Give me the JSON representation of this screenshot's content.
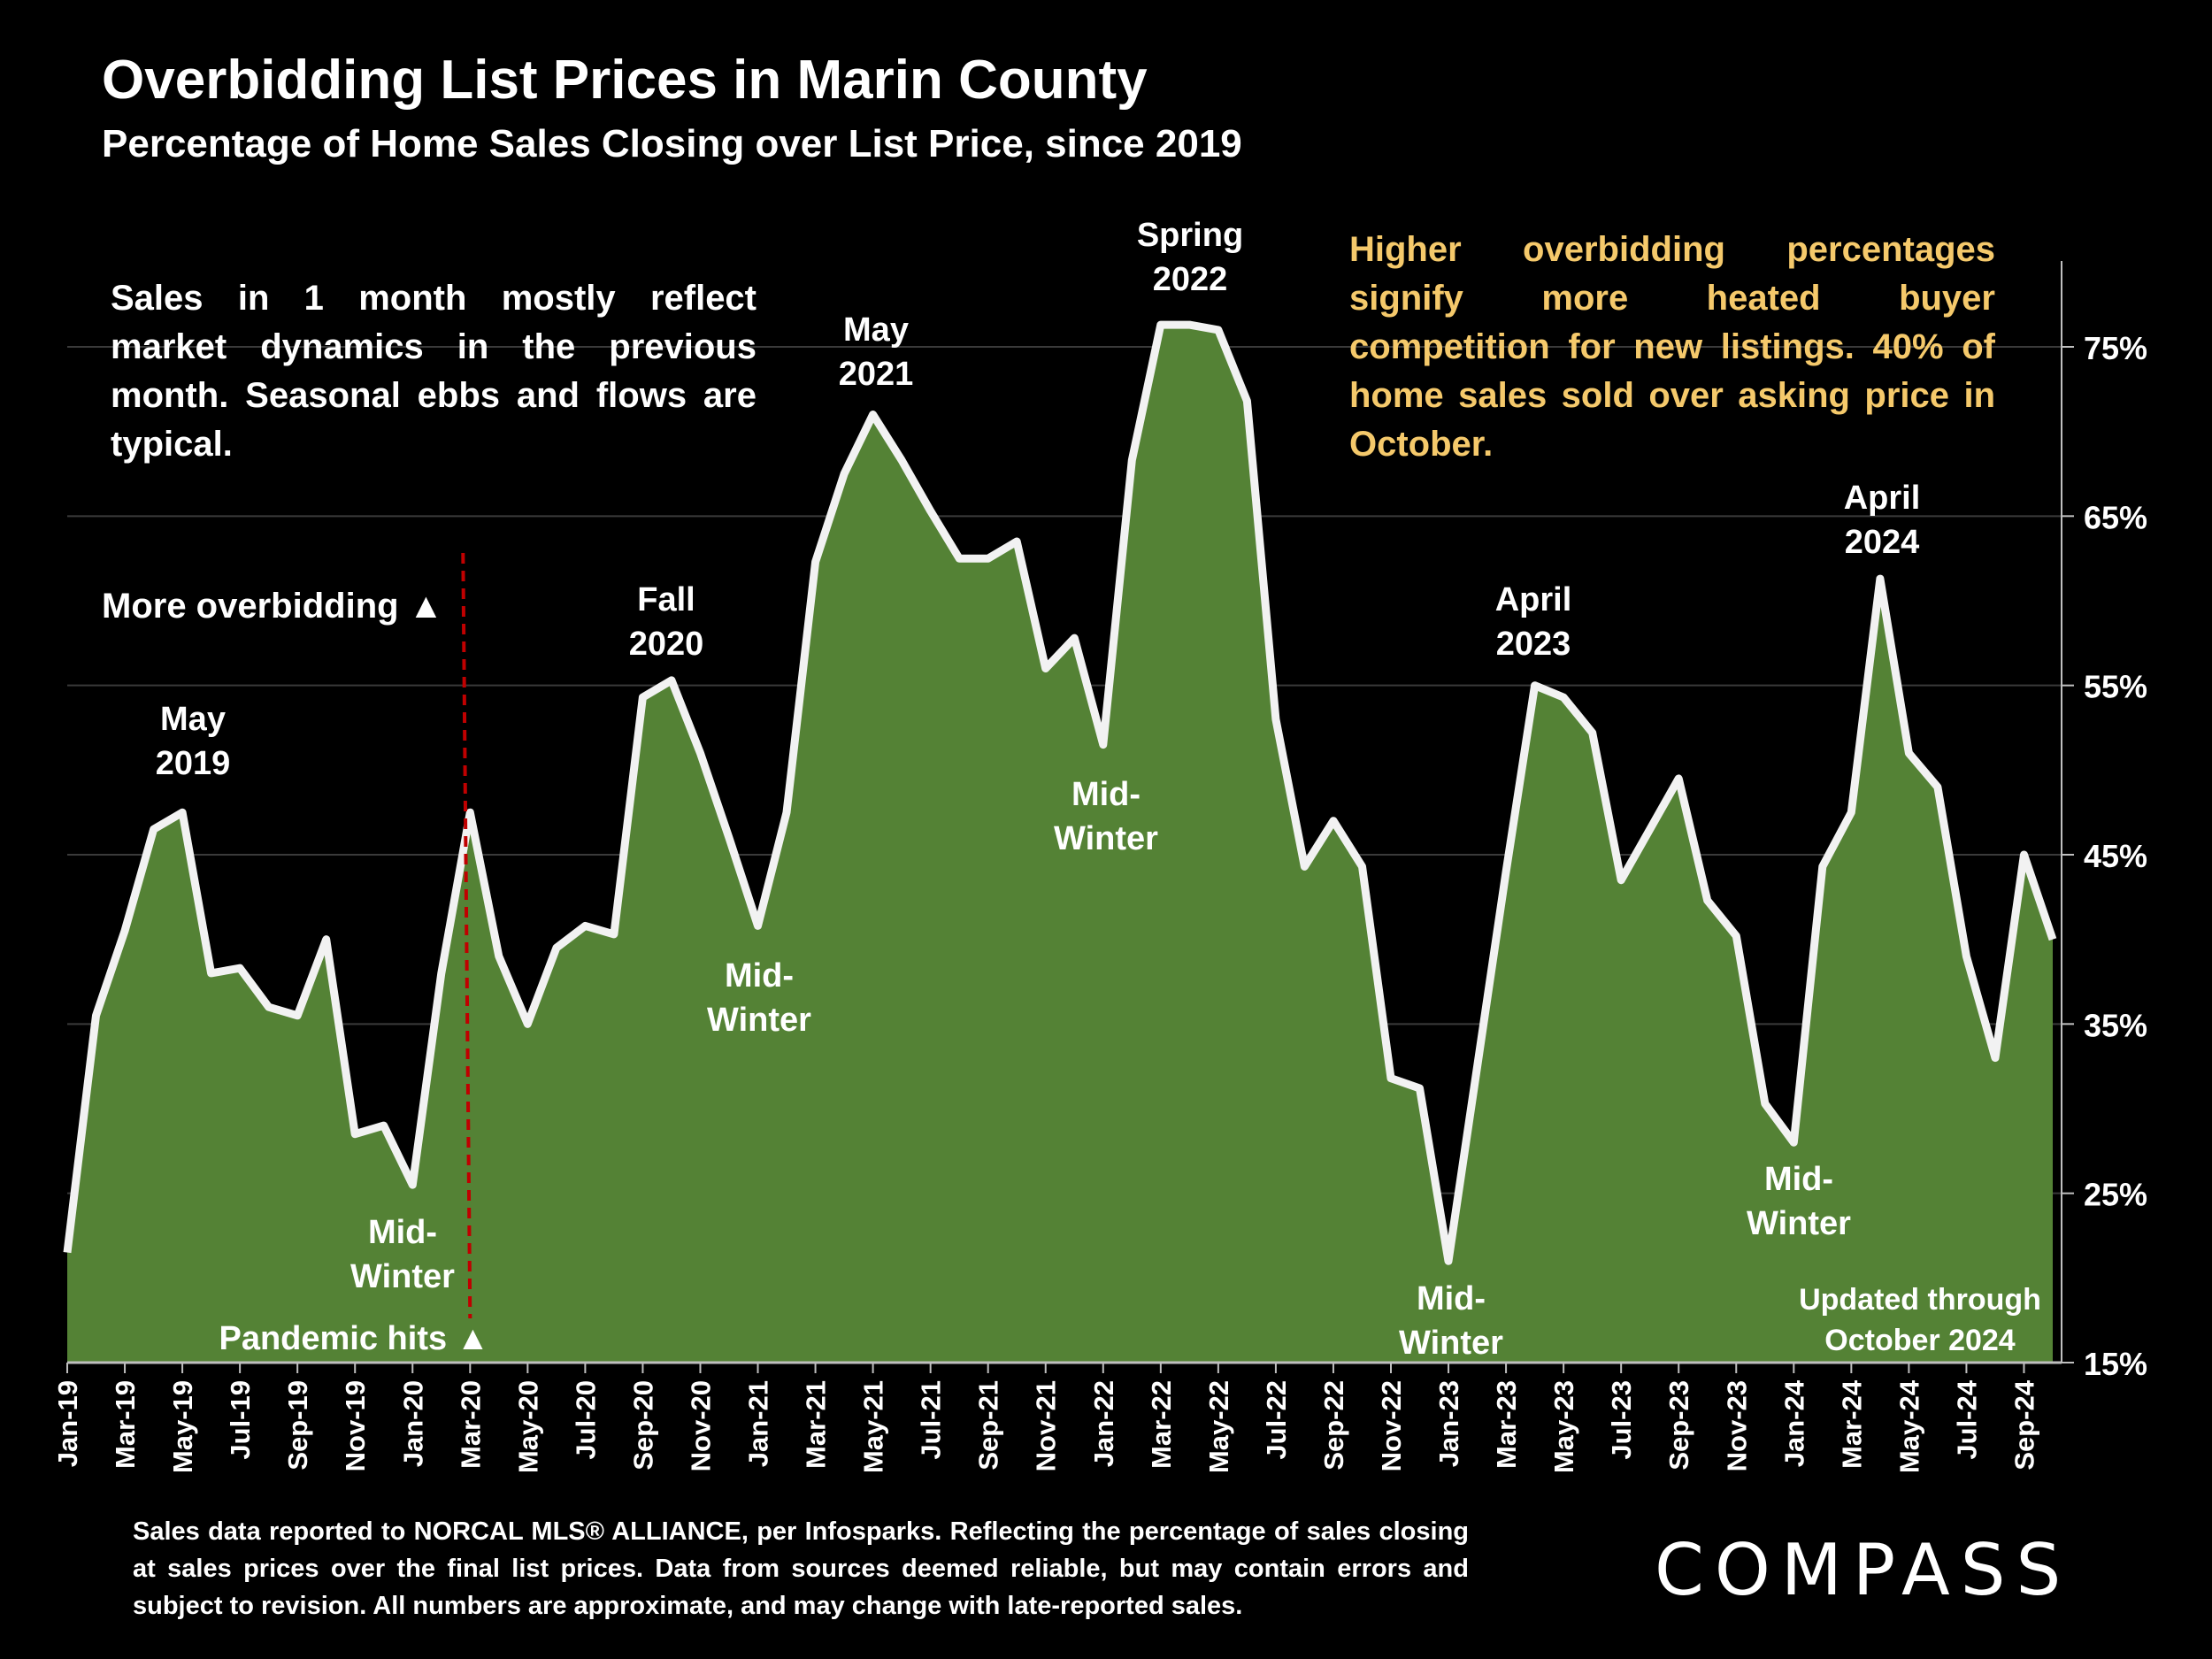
{
  "title": "Overbidding List Prices in Marin County",
  "subtitle": "Percentage of Home Sales Closing over List Price, since 2019",
  "note_left": "Sales in 1 month mostly reflect market dynamics in the previous month. Seasonal ebbs and flows are typical.",
  "note_right": "Higher overbidding percentages signify more heated buyer competition for new listings. 40% of home sales sold over asking price in October.",
  "footnote": "Sales data reported to NORCAL MLS® ALLIANCE, per Infosparks. Reflecting the percentage of sales closing at sales prices over the final list prices. Data from sources deemed reliable, but may contain errors and subject to revision. All numbers are approximate, and may change with late-reported sales.",
  "logo_text": "COMPASS",
  "colors": {
    "fill": "#548235",
    "line": "#f2f2f2",
    "grid": "#3a3a3a",
    "pandemic_line": "#c00000",
    "note_right": "#f5c96b"
  },
  "chart_data": {
    "type": "area",
    "ylim": [
      15,
      80
    ],
    "ytick_values": [
      15,
      25,
      35,
      45,
      55,
      65,
      75
    ],
    "ytick_labels": [
      "15%",
      "25%",
      "35%",
      "45%",
      "55%",
      "65%",
      "75%"
    ],
    "grid": true,
    "yaxis_position": "right",
    "x": [
      "Jan-19",
      "Feb-19",
      "Mar-19",
      "Apr-19",
      "May-19",
      "Jun-19",
      "Jul-19",
      "Aug-19",
      "Sep-19",
      "Oct-19",
      "Nov-19",
      "Dec-19",
      "Jan-20",
      "Feb-20",
      "Mar-20",
      "Apr-20",
      "May-20",
      "Jun-20",
      "Jul-20",
      "Aug-20",
      "Sep-20",
      "Oct-20",
      "Nov-20",
      "Dec-20",
      "Jan-21",
      "Feb-21",
      "Mar-21",
      "Apr-21",
      "May-21",
      "Jun-21",
      "Jul-21",
      "Aug-21",
      "Sep-21",
      "Oct-21",
      "Nov-21",
      "Dec-21",
      "Jan-22",
      "Feb-22",
      "Mar-22",
      "Apr-22",
      "May-22",
      "Jun-22",
      "Jul-22",
      "Aug-22",
      "Sep-22",
      "Oct-22",
      "Nov-22",
      "Dec-22",
      "Jan-23",
      "Feb-23",
      "Mar-23",
      "Apr-23",
      "May-23",
      "Jun-23",
      "Jul-23",
      "Aug-23",
      "Sep-23",
      "Oct-23",
      "Nov-23",
      "Dec-23",
      "Jan-24",
      "Feb-24",
      "Mar-24",
      "Apr-24",
      "May-24",
      "Jun-24",
      "Jul-24",
      "Aug-24",
      "Sep-24",
      "Oct-24"
    ],
    "xtick_labels": [
      "Jan-19",
      "Mar-19",
      "May-19",
      "Jul-19",
      "Sep-19",
      "Nov-19",
      "Jan-20",
      "Mar-20",
      "May-20",
      "Jul-20",
      "Sep-20",
      "Nov-20",
      "Jan-21",
      "Mar-21",
      "May-21",
      "Jul-21",
      "Sep-21",
      "Nov-21",
      "Jan-22",
      "Mar-22",
      "May-22",
      "Jul-22",
      "Sep-22",
      "Nov-22",
      "Jan-23",
      "Mar-23",
      "May-23",
      "Jul-23",
      "Sep-23",
      "Nov-23",
      "Jan-24",
      "Mar-24",
      "May-24",
      "Jul-24",
      "Sep-24"
    ],
    "series": [
      {
        "values": [
          21.5,
          35.5,
          40.5,
          46.5,
          47.5,
          38,
          38.3,
          36,
          35.5,
          40,
          28.5,
          29,
          25.5,
          38,
          47.5,
          39,
          35,
          39.5,
          40.8,
          40.3,
          54.3,
          55.3,
          51,
          46,
          40.8,
          47.5,
          62.3,
          67.5,
          71,
          68.3,
          65.3,
          62.5,
          62.5,
          63.5,
          56,
          57.8,
          51.5,
          68.3,
          76.3,
          76.3,
          76,
          71.8,
          53,
          44.3,
          47,
          44.3,
          31.8,
          31.2,
          21,
          32.5,
          44,
          55,
          54.3,
          52.2,
          43.5,
          46.5,
          49.5,
          42.3,
          40.2,
          30.3,
          28,
          44.3,
          47.5,
          61.3,
          51,
          49,
          39,
          33,
          45,
          40
        ]
      }
    ],
    "annotations": [
      {
        "text": [
          "May",
          "2019"
        ],
        "at": "May-19"
      },
      {
        "text": [
          "Mid-",
          "Winter"
        ],
        "at": "Jan-20"
      },
      {
        "text": [
          "Fall",
          "2020"
        ],
        "at": "Oct-20"
      },
      {
        "text": [
          "Mid-",
          "Winter"
        ],
        "at": "Jan-21"
      },
      {
        "text": [
          "May",
          "2021"
        ],
        "at": "May-21"
      },
      {
        "text": [
          "Mid-",
          "Winter"
        ],
        "at": "Jan-22"
      },
      {
        "text": [
          "Spring",
          "2022"
        ],
        "at": "Apr-22"
      },
      {
        "text": [
          "April",
          "2023"
        ],
        "at": "Apr-23"
      },
      {
        "text": [
          "Mid-",
          "Winter"
        ],
        "at": "Jan-23"
      },
      {
        "text": [
          "Mid-",
          "Winter"
        ],
        "at": "Jan-24"
      },
      {
        "text": [
          "April",
          "2024"
        ],
        "at": "Apr-24"
      },
      {
        "text": [
          "Updated through",
          "October 2024"
        ],
        "at": "Jul-24"
      }
    ],
    "more_overbidding_label": "More overbidding ▲",
    "pandemic_label": "Pandemic hits ▲",
    "pandemic_at": "Mar-20"
  }
}
